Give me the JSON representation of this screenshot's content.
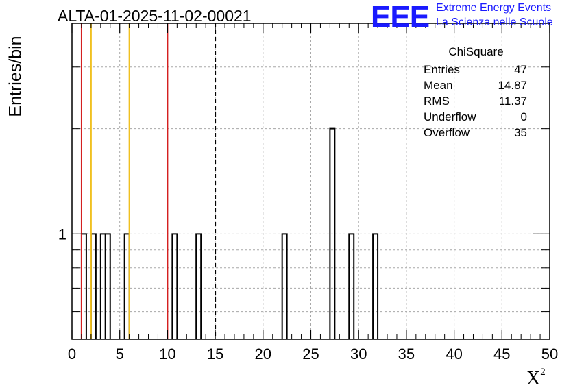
{
  "title": "ALTA-01-2025-11-02-00021",
  "logo": {
    "text": "EEE",
    "line1": "Extreme Energy Events",
    "line2": "La Scienza nelle Scuole",
    "color": "#1a1aff"
  },
  "stats": {
    "name": "ChiSquare",
    "rows": [
      {
        "label": "Entries",
        "value": "47"
      },
      {
        "label": "Mean",
        "value": "14.87"
      },
      {
        "label": "RMS",
        "value": "11.37"
      },
      {
        "label": "Underflow",
        "value": "0"
      },
      {
        "label": "Overflow",
        "value": "35"
      }
    ]
  },
  "chart_data": {
    "type": "bar",
    "title": "ALTA-01-2025-11-02-00021",
    "xlabel": "X",
    "xlabel_sup": "2",
    "ylabel": "Entries/bin",
    "xlim": [
      0,
      50
    ],
    "ylog": true,
    "ylim": [
      0.5,
      4
    ],
    "xticks": [
      0,
      5,
      10,
      15,
      20,
      25,
      30,
      35,
      40,
      45,
      50
    ],
    "yticks_labeled": [
      1
    ],
    "bin_width": 0.5,
    "bins": [
      {
        "x": 1.0,
        "count": 1
      },
      {
        "x": 2.0,
        "count": 1
      },
      {
        "x": 3.0,
        "count": 1
      },
      {
        "x": 3.5,
        "count": 1
      },
      {
        "x": 5.5,
        "count": 1
      },
      {
        "x": 10.5,
        "count": 1
      },
      {
        "x": 13.0,
        "count": 1
      },
      {
        "x": 22.0,
        "count": 1
      },
      {
        "x": 27.0,
        "count": 2
      },
      {
        "x": 29.0,
        "count": 1
      },
      {
        "x": 31.5,
        "count": 1
      }
    ],
    "vlines": [
      {
        "x": 1,
        "color": "#d42020",
        "style": "solid"
      },
      {
        "x": 2,
        "color": "#f0c020",
        "style": "solid"
      },
      {
        "x": 6,
        "color": "#f0c020",
        "style": "solid"
      },
      {
        "x": 10,
        "color": "#d42020",
        "style": "solid"
      },
      {
        "x": 15,
        "color": "#000000",
        "style": "dashed"
      }
    ],
    "grid": true
  }
}
